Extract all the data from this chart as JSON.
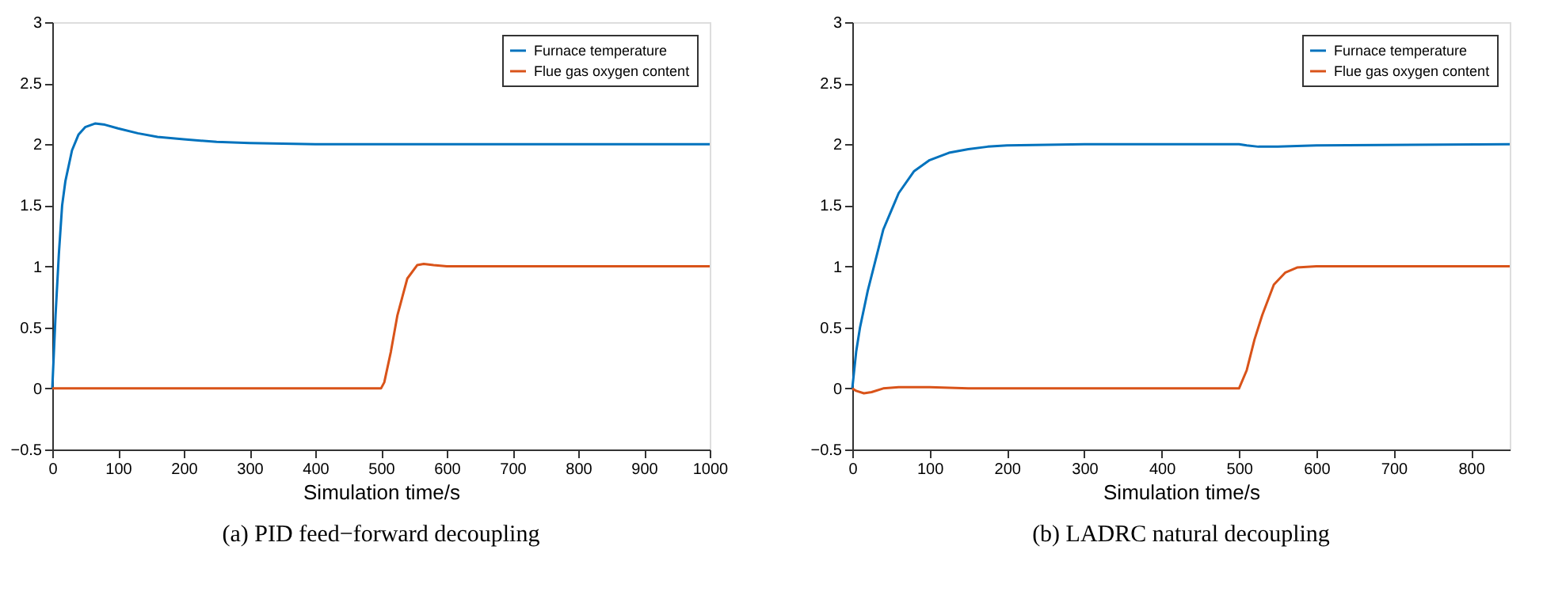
{
  "chart_data": [
    {
      "type": "line",
      "title": "(a) PID feed−forward decoupling",
      "xlabel": "Simulation time/s",
      "xlim": [
        0,
        1000
      ],
      "xticks": [
        0,
        100,
        200,
        300,
        400,
        500,
        600,
        700,
        800,
        900,
        1000
      ],
      "ylim": [
        -0.5,
        3
      ],
      "yticks": [
        -0.5,
        0,
        0.5,
        1,
        1.5,
        2,
        2.5,
        3
      ],
      "grid": false,
      "legend": "top right",
      "marker": "none",
      "line_style": "solid",
      "series": [
        {
          "name": "Furnace temperature",
          "color": "#0072bd",
          "x": [
            0,
            5,
            10,
            15,
            20,
            30,
            40,
            50,
            65,
            80,
            100,
            130,
            160,
            200,
            250,
            300,
            400,
            1000
          ],
          "values": [
            0,
            0.6,
            1.1,
            1.5,
            1.7,
            1.95,
            2.08,
            2.14,
            2.17,
            2.16,
            2.13,
            2.09,
            2.06,
            2.04,
            2.02,
            2.01,
            2.0,
            2.0
          ]
        },
        {
          "name": "Flue gas oxygen content",
          "color": "#d95319",
          "x": [
            0,
            500,
            505,
            515,
            525,
            540,
            555,
            565,
            580,
            600,
            1000
          ],
          "values": [
            0,
            0,
            0.05,
            0.3,
            0.6,
            0.9,
            1.01,
            1.02,
            1.01,
            1.0,
            1.0
          ]
        }
      ]
    },
    {
      "type": "line",
      "title": "(b) LADRC natural decoupling",
      "xlabel": "Simulation time/s",
      "xlim": [
        0,
        850
      ],
      "xticks": [
        0,
        100,
        200,
        300,
        400,
        500,
        600,
        700,
        800
      ],
      "ylim": [
        -0.5,
        3
      ],
      "yticks": [
        -0.5,
        0,
        0.5,
        1,
        1.5,
        2,
        2.5,
        3
      ],
      "grid": false,
      "legend": "top right",
      "marker": "none",
      "line_style": "solid",
      "series": [
        {
          "name": "Furnace temperature",
          "color": "#0072bd",
          "x": [
            0,
            5,
            10,
            20,
            30,
            40,
            50,
            60,
            80,
            100,
            125,
            150,
            175,
            200,
            300,
            500,
            510,
            525,
            550,
            600,
            850
          ],
          "values": [
            0,
            0.3,
            0.5,
            0.8,
            1.05,
            1.3,
            1.45,
            1.6,
            1.78,
            1.87,
            1.93,
            1.96,
            1.98,
            1.99,
            2.0,
            2.0,
            1.99,
            1.98,
            1.98,
            1.99,
            2.0
          ]
        },
        {
          "name": "Flue gas oxygen content",
          "color": "#d95319",
          "x": [
            0,
            5,
            15,
            25,
            40,
            60,
            100,
            150,
            500,
            510,
            520,
            530,
            545,
            560,
            575,
            600,
            850
          ],
          "values": [
            0,
            -0.02,
            -0.04,
            -0.03,
            0.0,
            0.01,
            0.01,
            0,
            0,
            0.15,
            0.4,
            0.6,
            0.85,
            0.95,
            0.99,
            1.0,
            1.0
          ]
        }
      ]
    }
  ]
}
